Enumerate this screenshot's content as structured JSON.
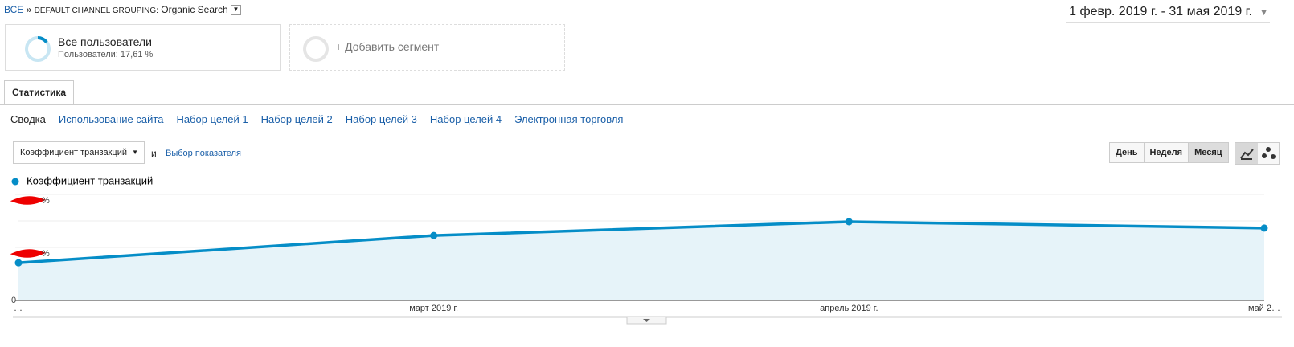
{
  "breadcrumb": {
    "all": "ВСЕ",
    "sep": "»",
    "dimension": "DEFAULT CHANNEL GROUPING:",
    "value": "Organic Search"
  },
  "date_range": "1 февр. 2019 г. - 31 мая 2019 г.",
  "segments": [
    {
      "title": "Все пользователи",
      "subtitle": "Пользователи: 17,61 %"
    },
    {
      "title": "+ Добавить сегмент"
    }
  ],
  "main_tab": "Статистика",
  "sub_tabs": [
    "Сводка",
    "Использование сайта",
    "Набор целей 1",
    "Набор целей 2",
    "Набор целей 3",
    "Набор целей 4",
    "Электронная торговля"
  ],
  "metric_select": "Коэффициент транзакций",
  "and": "и",
  "metric_link": "Выбор показателя",
  "granularity": [
    "День",
    "Неделя",
    "Месяц"
  ],
  "chart_data": {
    "type": "line",
    "categories": [
      "…",
      "март 2019 г.",
      "апрель 2019 г.",
      "май 2…"
    ],
    "series": [
      {
        "name": "Коэффициент транзакций",
        "color": "#058dc7",
        "values": [
          1.42,
          2.45,
          2.97,
          2.73
        ]
      }
    ],
    "ylim": [
      0,
      4
    ],
    "yticks": [
      {
        "value": 0,
        "label": "0"
      },
      {
        "value": 2,
        "label": "%"
      },
      {
        "value": 4,
        "label": "%"
      }
    ],
    "grid": true
  }
}
